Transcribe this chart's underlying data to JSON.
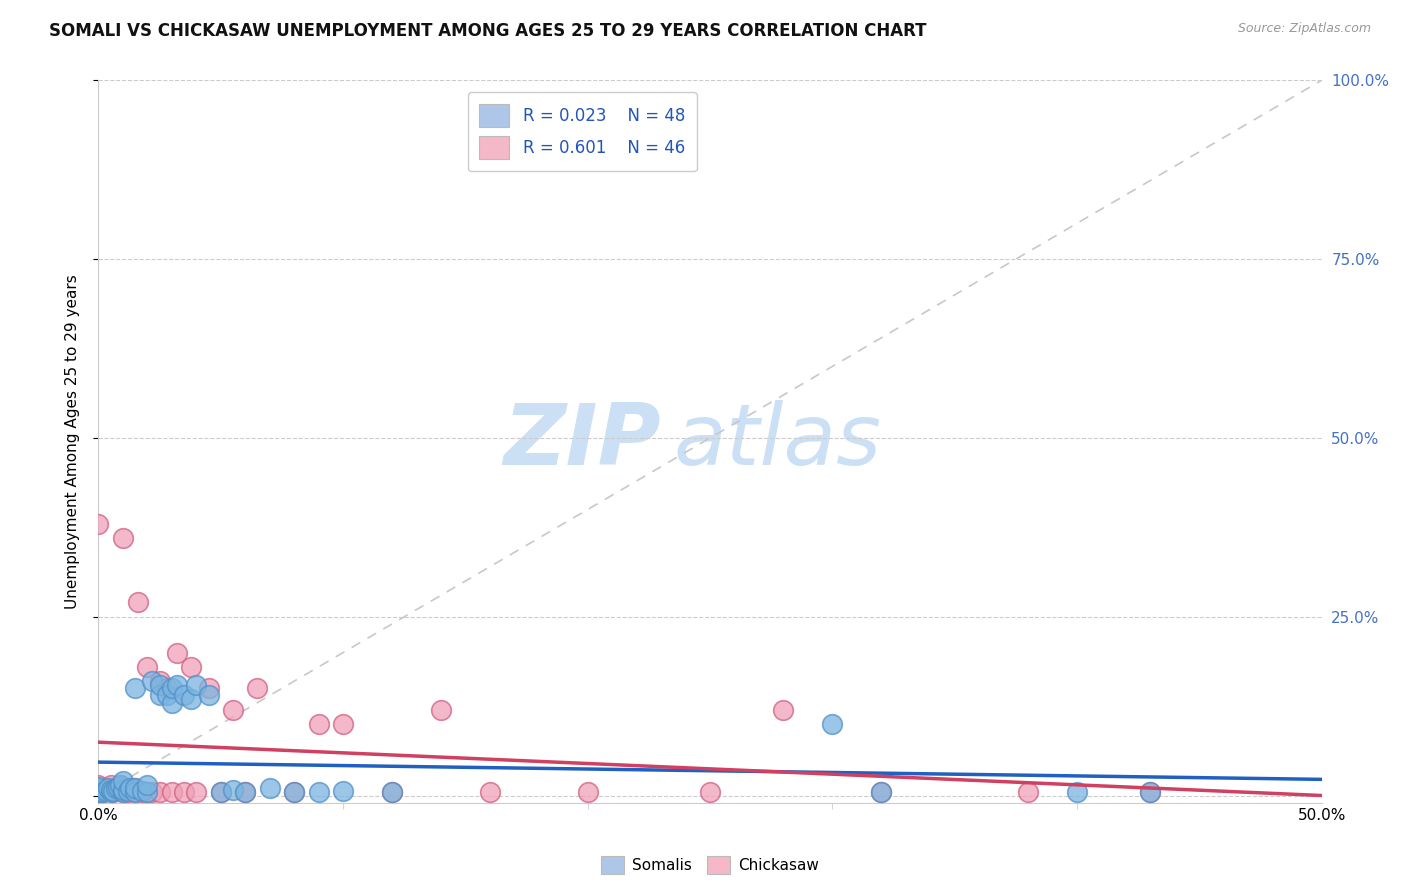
{
  "title": "SOMALI VS CHICKASAW UNEMPLOYMENT AMONG AGES 25 TO 29 YEARS CORRELATION CHART",
  "source": "Source: ZipAtlas.com",
  "ylabel": "Unemployment Among Ages 25 to 29 years",
  "xlim": [
    0,
    0.5
  ],
  "ylim": [
    -0.01,
    1.0
  ],
  "xtick_major": [
    0.0,
    0.5
  ],
  "xtick_major_labels": [
    "0.0%",
    "50.0%"
  ],
  "xtick_minor": [
    0.1,
    0.2,
    0.3,
    0.4
  ],
  "yticks": [
    0.0,
    0.25,
    0.5,
    0.75,
    1.0
  ],
  "ytick_labels": [
    "",
    "25.0%",
    "50.0%",
    "75.0%",
    "100.0%"
  ],
  "ytick_color": "#4472c4",
  "legend_r1": "R = 0.023",
  "legend_n1": "N = 48",
  "legend_r2": "R = 0.601",
  "legend_n2": "N = 46",
  "legend_color1": "#aec6e8",
  "legend_color2": "#f4b8c8",
  "somali_color": "#7ab4e0",
  "somali_edge": "#5090c8",
  "chickasaw_color": "#f0a0b8",
  "chickasaw_edge": "#d06080",
  "regression_color1": "#2060c0",
  "regression_color2": "#d04060",
  "diagonal_color": "#c8c8c8",
  "watermark_zip": "ZIP",
  "watermark_atlas": "atlas",
  "watermark_color": "#cce0f5",
  "grid_color": "#cccccc",
  "background_color": "#ffffff",
  "somali_x": [
    0.0,
    0.0,
    0.0,
    0.0,
    0.0,
    0.002,
    0.003,
    0.004,
    0.005,
    0.005,
    0.006,
    0.007,
    0.008,
    0.009,
    0.01,
    0.01,
    0.01,
    0.012,
    0.013,
    0.015,
    0.015,
    0.015,
    0.018,
    0.02,
    0.02,
    0.022,
    0.025,
    0.025,
    0.028,
    0.03,
    0.03,
    0.032,
    0.035,
    0.038,
    0.04,
    0.045,
    0.05,
    0.055,
    0.06,
    0.07,
    0.08,
    0.09,
    0.1,
    0.12,
    0.3,
    0.32,
    0.4,
    0.43
  ],
  "somali_y": [
    0.005,
    0.006,
    0.008,
    0.01,
    0.012,
    0.005,
    0.006,
    0.01,
    0.005,
    0.008,
    0.006,
    0.01,
    0.012,
    0.015,
    0.005,
    0.008,
    0.02,
    0.006,
    0.01,
    0.005,
    0.01,
    0.15,
    0.006,
    0.005,
    0.015,
    0.16,
    0.14,
    0.155,
    0.14,
    0.13,
    0.15,
    0.155,
    0.14,
    0.135,
    0.155,
    0.14,
    0.005,
    0.008,
    0.005,
    0.01,
    0.005,
    0.005,
    0.006,
    0.005,
    0.1,
    0.005,
    0.005,
    0.005
  ],
  "chickasaw_x": [
    0.0,
    0.0,
    0.0,
    0.0,
    0.002,
    0.004,
    0.005,
    0.006,
    0.008,
    0.009,
    0.01,
    0.01,
    0.012,
    0.013,
    0.015,
    0.015,
    0.016,
    0.018,
    0.02,
    0.02,
    0.022,
    0.025,
    0.025,
    0.028,
    0.03,
    0.032,
    0.035,
    0.038,
    0.04,
    0.045,
    0.05,
    0.055,
    0.06,
    0.065,
    0.08,
    0.09,
    0.1,
    0.12,
    0.14,
    0.16,
    0.2,
    0.25,
    0.28,
    0.32,
    0.38,
    0.43
  ],
  "chickasaw_y": [
    0.005,
    0.008,
    0.015,
    0.38,
    0.005,
    0.01,
    0.015,
    0.005,
    0.01,
    0.015,
    0.005,
    0.36,
    0.005,
    0.01,
    0.005,
    0.01,
    0.27,
    0.005,
    0.005,
    0.18,
    0.005,
    0.005,
    0.16,
    0.15,
    0.005,
    0.2,
    0.005,
    0.18,
    0.005,
    0.15,
    0.005,
    0.12,
    0.005,
    0.15,
    0.005,
    0.1,
    0.1,
    0.005,
    0.12,
    0.005,
    0.005,
    0.005,
    0.12,
    0.005,
    0.005,
    0.005
  ]
}
